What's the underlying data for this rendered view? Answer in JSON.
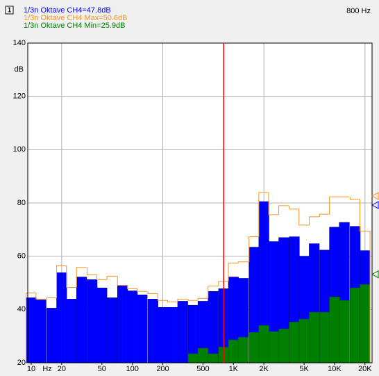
{
  "chart_data": {
    "type": "bar",
    "panel": "1",
    "cursor": {
      "x": 800,
      "label": "800 Hz"
    },
    "ylabel": "dB",
    "x_unit": {
      "value": 14.4,
      "label": "Hz"
    },
    "xscale": "log",
    "xlim": [
      9.24,
      23500
    ],
    "xticks": [
      10,
      20,
      50,
      100,
      200,
      500,
      {
        "value": 1000,
        "label": "1K"
      },
      {
        "value": 2000,
        "label": "2K"
      },
      {
        "value": 5000,
        "label": "5K"
      },
      {
        "value": 10000,
        "label": "10K"
      },
      {
        "value": 20000,
        "label": "20K"
      }
    ],
    "xgrid": [
      20,
      200,
      2000,
      20000
    ],
    "ylim": [
      20,
      140
    ],
    "yticks": [
      20,
      40,
      60,
      80,
      100,
      120,
      140
    ],
    "grid": true,
    "x": [
      10,
      12.5,
      16,
      20,
      25,
      31.5,
      40,
      50,
      63,
      80,
      100,
      125,
      160,
      200,
      250,
      315,
      400,
      500,
      630,
      800,
      1000,
      1250,
      1600,
      2000,
      2500,
      3150,
      4000,
      5000,
      6300,
      8000,
      10000,
      12500,
      16000,
      20000
    ],
    "series": [
      {
        "name": "1/3n Oktave CH4=47.8dB",
        "color": "#0000ff",
        "style": "bar",
        "marker": 79.2,
        "values": [
          44.4,
          43.6,
          40.5,
          53.8,
          43.9,
          52.2,
          51.2,
          48.1,
          44.4,
          49.1,
          47.0,
          45.5,
          43.9,
          40.8,
          40.8,
          43.1,
          41.6,
          43.1,
          46.8,
          47.8,
          52.2,
          51.7,
          63.4,
          80.5,
          65.5,
          67.0,
          67.3,
          60.0,
          64.7,
          62.3,
          70.9,
          72.7,
          71.2,
          62.1
        ]
      },
      {
        "name": "1/3n Oktave CH4 Max=50.6dB",
        "color": "#f7941d",
        "style": "step",
        "marker": 82.6,
        "values": [
          46.2,
          43.9,
          44.4,
          56.4,
          48.3,
          55.8,
          53.0,
          51.2,
          52.5,
          49.1,
          47.8,
          46.8,
          46.0,
          43.4,
          42.9,
          43.9,
          43.4,
          44.2,
          48.8,
          50.6,
          57.4,
          57.9,
          67.3,
          83.9,
          75.6,
          79.0,
          77.7,
          71.7,
          74.8,
          75.8,
          82.3,
          82.3,
          81.3,
          69.4
        ]
      },
      {
        "name": "1/3n Oktave CH4 Min=25.9dB",
        "color": "#008000",
        "style": "bar",
        "marker": 53.2,
        "values": [
          null,
          null,
          null,
          null,
          null,
          null,
          null,
          null,
          null,
          null,
          null,
          null,
          null,
          null,
          null,
          null,
          23.4,
          25.5,
          23.4,
          25.9,
          28.6,
          29.6,
          31.4,
          34.0,
          31.7,
          32.7,
          35.3,
          36.4,
          39.0,
          39.0,
          44.7,
          43.4,
          48.1,
          49.4
        ]
      }
    ]
  }
}
